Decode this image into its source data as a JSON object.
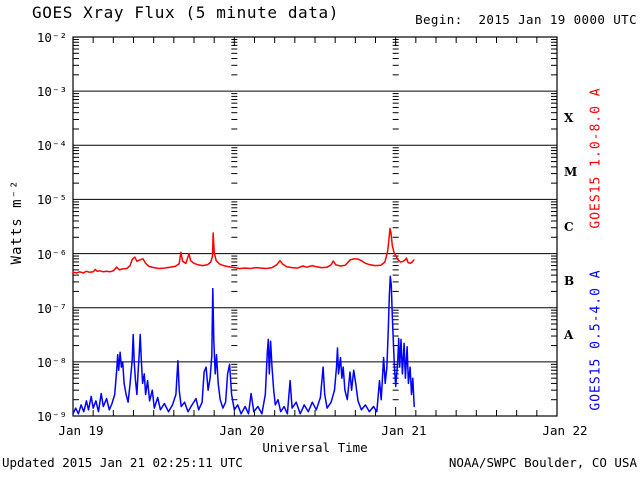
{
  "header": {
    "title": "GOES Xray Flux (5 minute data)",
    "begin_label": "Begin:  2015 Jan 19 0000 UTC"
  },
  "footer": {
    "updated": "Updated 2015 Jan 21 02:25:11 UTC",
    "source": "NOAA/SWPC Boulder, CO USA"
  },
  "axes": {
    "y_label": "Watts m⁻²",
    "x_label": "Universal Time",
    "y_ticks": [
      "10⁻²",
      "10⁻³",
      "10⁻⁴",
      "10⁻⁵",
      "10⁻⁶",
      "10⁻⁷",
      "10⁻⁸",
      "10⁻⁹"
    ],
    "x_ticks": [
      "Jan 19",
      "Jan 20",
      "Jan 21",
      "Jan 22"
    ]
  },
  "flare_classes": [
    "X",
    "M",
    "C",
    "B",
    "A"
  ],
  "series_labels": {
    "long": "GOES15 1.0-8.0 A",
    "short": "GOES15 0.5-4.0 A"
  },
  "colors": {
    "long": "#ff0000",
    "short": "#0000ff",
    "axis": "#000000",
    "background": "#ffffff"
  },
  "chart_data": {
    "type": "line",
    "title": "GOES Xray Flux (5 minute data)",
    "xlabel": "Universal Time",
    "ylabel": "Watts m⁻²",
    "x_unit_hours_since": "2015 Jan 19 0000 UTC",
    "x_range_hours": [
      0,
      72
    ],
    "x_day_labels": [
      "Jan 19",
      "Jan 20",
      "Jan 21",
      "Jan 22"
    ],
    "y_scale": "log",
    "y_range": [
      1e-09,
      0.01
    ],
    "grid": "horizontal decades + dashed day columns",
    "legend_position": "right-rotated",
    "series": [
      {
        "name": "GOES15 1.0-8.0 A",
        "color": "#ff0000",
        "points": [
          [
            0,
            4.5e-07
          ],
          [
            0.5,
            4.4e-07
          ],
          [
            1,
            4.6e-07
          ],
          [
            1.5,
            4.4e-07
          ],
          [
            2,
            4.7e-07
          ],
          [
            2.5,
            4.5e-07
          ],
          [
            3,
            4.6e-07
          ],
          [
            3.3,
            5.1e-07
          ],
          [
            3.6,
            4.7e-07
          ],
          [
            4,
            4.8e-07
          ],
          [
            4.5,
            4.6e-07
          ],
          [
            5,
            4.7e-07
          ],
          [
            5.5,
            4.6e-07
          ],
          [
            6,
            4.8e-07
          ],
          [
            6.5,
            5.6e-07
          ],
          [
            6.9,
            5e-07
          ],
          [
            7.4,
            5.2e-07
          ],
          [
            8,
            5.3e-07
          ],
          [
            8.5,
            6e-07
          ],
          [
            8.8,
            7.8e-07
          ],
          [
            9.2,
            8.6e-07
          ],
          [
            9.5,
            7.2e-07
          ],
          [
            9.9,
            7.6e-07
          ],
          [
            10.4,
            8e-07
          ],
          [
            10.8,
            6.6e-07
          ],
          [
            11.3,
            5.8e-07
          ],
          [
            12,
            5.5e-07
          ],
          [
            12.8,
            5.3e-07
          ],
          [
            13.6,
            5.4e-07
          ],
          [
            14.4,
            5.6e-07
          ],
          [
            15.2,
            5.8e-07
          ],
          [
            15.8,
            6.5e-07
          ],
          [
            16.05,
            1.06e-06
          ],
          [
            16.3,
            7.2e-07
          ],
          [
            16.8,
            6.6e-07
          ],
          [
            17.25,
            1e-06
          ],
          [
            17.5,
            7.4e-07
          ],
          [
            18,
            6.6e-07
          ],
          [
            18.6,
            6.2e-07
          ],
          [
            19.3,
            6e-07
          ],
          [
            20,
            6.2e-07
          ],
          [
            20.5,
            7e-07
          ],
          [
            20.75,
            9e-07
          ],
          [
            20.85,
            2.4e-06
          ],
          [
            21,
            1.05e-06
          ],
          [
            21.3,
            7.4e-07
          ],
          [
            21.8,
            6.4e-07
          ],
          [
            22.4,
            6e-07
          ],
          [
            23.2,
            5.7e-07
          ],
          [
            24,
            5.5e-07
          ],
          [
            24.8,
            5.3e-07
          ],
          [
            25.6,
            5.4e-07
          ],
          [
            26.4,
            5.3e-07
          ],
          [
            27.2,
            5.5e-07
          ],
          [
            28,
            5.4e-07
          ],
          [
            28.8,
            5.3e-07
          ],
          [
            29.6,
            5.5e-07
          ],
          [
            30.3,
            6.2e-07
          ],
          [
            30.8,
            7.4e-07
          ],
          [
            31.2,
            6.4e-07
          ],
          [
            31.8,
            5.7e-07
          ],
          [
            32.6,
            5.5e-07
          ],
          [
            33.4,
            5.4e-07
          ],
          [
            34.2,
            5.9e-07
          ],
          [
            34.8,
            5.6e-07
          ],
          [
            35.6,
            6e-07
          ],
          [
            36.2,
            5.7e-07
          ],
          [
            37,
            5.5e-07
          ],
          [
            37.8,
            5.6e-07
          ],
          [
            38.4,
            6.2e-07
          ],
          [
            38.7,
            7.3e-07
          ],
          [
            39.1,
            6.2e-07
          ],
          [
            39.8,
            5.9e-07
          ],
          [
            40.5,
            6.1e-07
          ],
          [
            41.2,
            7.6e-07
          ],
          [
            41.8,
            8e-07
          ],
          [
            42.4,
            7.9e-07
          ],
          [
            42.9,
            7.4e-07
          ],
          [
            43.5,
            6.6e-07
          ],
          [
            44.2,
            6.2e-07
          ],
          [
            45,
            6e-07
          ],
          [
            45.8,
            6.1e-07
          ],
          [
            46.4,
            7e-07
          ],
          [
            46.8,
            1.1e-06
          ],
          [
            47,
            1.8e-06
          ],
          [
            47.15,
            2.9e-06
          ],
          [
            47.3,
            2.4e-06
          ],
          [
            47.5,
            1.4e-06
          ],
          [
            47.75,
            1.05e-06
          ],
          [
            48,
            9.2e-07
          ],
          [
            48.3,
            7.8e-07
          ],
          [
            48.7,
            7e-07
          ],
          [
            49.1,
            7.2e-07
          ],
          [
            49.4,
            7.6e-07
          ],
          [
            49.6,
            8.3e-07
          ],
          [
            49.85,
            6.8e-07
          ],
          [
            50.2,
            6.6e-07
          ],
          [
            50.45,
            7e-07
          ],
          [
            50.7,
            7.6e-07
          ]
        ]
      },
      {
        "name": "GOES15 0.5-4.0 A",
        "color": "#0000ff",
        "points": [
          [
            0,
            1.1e-09
          ],
          [
            0.4,
            1.4e-09
          ],
          [
            0.8,
            1.1e-09
          ],
          [
            1.2,
            1.6e-09
          ],
          [
            1.6,
            1.2e-09
          ],
          [
            2.0,
            1.9e-09
          ],
          [
            2.3,
            1.3e-09
          ],
          [
            2.7,
            2.3e-09
          ],
          [
            3.0,
            1.4e-09
          ],
          [
            3.4,
            1.9e-09
          ],
          [
            3.8,
            1.2e-09
          ],
          [
            4.2,
            2.6e-09
          ],
          [
            4.5,
            1.5e-09
          ],
          [
            5.0,
            2.1e-09
          ],
          [
            5.4,
            1.3e-09
          ],
          [
            5.8,
            1.7e-09
          ],
          [
            6.2,
            2.5e-09
          ],
          [
            6.5,
            7e-09
          ],
          [
            6.65,
            1.35e-08
          ],
          [
            6.8,
            7e-09
          ],
          [
            7.0,
            1.5e-08
          ],
          [
            7.2,
            8e-09
          ],
          [
            7.4,
            1e-08
          ],
          [
            7.6,
            4e-09
          ],
          [
            7.9,
            2.5e-09
          ],
          [
            8.2,
            1.8e-09
          ],
          [
            8.5,
            4e-09
          ],
          [
            8.8,
            1.1e-08
          ],
          [
            8.95,
            3.2e-08
          ],
          [
            9.1,
            1e-08
          ],
          [
            9.3,
            4.5e-09
          ],
          [
            9.5,
            2.5e-09
          ],
          [
            9.7,
            7e-09
          ],
          [
            9.85,
            1.4e-08
          ],
          [
            10.0,
            3.2e-08
          ],
          [
            10.15,
            1.2e-08
          ],
          [
            10.35,
            4e-09
          ],
          [
            10.6,
            6e-09
          ],
          [
            10.8,
            2.5e-09
          ],
          [
            11.1,
            4.5e-09
          ],
          [
            11.4,
            1.9e-09
          ],
          [
            11.8,
            3e-09
          ],
          [
            12.1,
            1.4e-09
          ],
          [
            12.6,
            2.2e-09
          ],
          [
            13.0,
            1.3e-09
          ],
          [
            13.6,
            1.7e-09
          ],
          [
            14.2,
            1.2e-09
          ],
          [
            14.8,
            1.6e-09
          ],
          [
            15.3,
            2.5e-09
          ],
          [
            15.6,
            1.05e-08
          ],
          [
            15.8,
            3e-09
          ],
          [
            16.1,
            1.5e-09
          ],
          [
            16.6,
            1.8e-09
          ],
          [
            17.1,
            1.2e-09
          ],
          [
            17.7,
            1.6e-09
          ],
          [
            18.3,
            2.1e-09
          ],
          [
            18.7,
            1.3e-09
          ],
          [
            19.2,
            1.8e-09
          ],
          [
            19.5,
            6.5e-09
          ],
          [
            19.8,
            8e-09
          ],
          [
            20.1,
            3e-09
          ],
          [
            20.4,
            5e-09
          ],
          [
            20.65,
            1.3e-08
          ],
          [
            20.8,
            2.25e-07
          ],
          [
            20.95,
            2.5e-08
          ],
          [
            21.15,
            6e-09
          ],
          [
            21.35,
            1.35e-08
          ],
          [
            21.6,
            4e-09
          ],
          [
            21.9,
            2e-09
          ],
          [
            22.3,
            1.4e-09
          ],
          [
            22.7,
            1.8e-09
          ],
          [
            23.0,
            6e-09
          ],
          [
            23.3,
            9e-09
          ],
          [
            23.6,
            2.5e-09
          ],
          [
            24.0,
            1.3e-09
          ],
          [
            24.5,
            1.6e-09
          ],
          [
            25.0,
            1.1e-09
          ],
          [
            25.6,
            1.5e-09
          ],
          [
            26.1,
            1.1e-09
          ],
          [
            26.5,
            2.6e-09
          ],
          [
            26.9,
            1.2e-09
          ],
          [
            27.5,
            1.5e-09
          ],
          [
            28.1,
            1.1e-09
          ],
          [
            28.6,
            2.5e-09
          ],
          [
            28.9,
            1.5e-08
          ],
          [
            29.05,
            2.6e-08
          ],
          [
            29.2,
            6e-09
          ],
          [
            29.4,
            2.4e-08
          ],
          [
            29.6,
            8e-09
          ],
          [
            29.85,
            3e-09
          ],
          [
            30.1,
            1.6e-09
          ],
          [
            30.5,
            2e-09
          ],
          [
            30.9,
            1.2e-09
          ],
          [
            31.4,
            1.5e-09
          ],
          [
            31.9,
            1.1e-09
          ],
          [
            32.3,
            4.5e-09
          ],
          [
            32.6,
            1.4e-09
          ],
          [
            33.2,
            1.8e-09
          ],
          [
            33.8,
            1.1e-09
          ],
          [
            34.4,
            1.6e-09
          ],
          [
            35.0,
            1.2e-09
          ],
          [
            35.6,
            1.8e-09
          ],
          [
            36.2,
            1.3e-09
          ],
          [
            36.8,
            2.2e-09
          ],
          [
            37.2,
            8e-09
          ],
          [
            37.45,
            2.5e-09
          ],
          [
            37.8,
            1.4e-09
          ],
          [
            38.4,
            1.8e-09
          ],
          [
            38.9,
            3e-09
          ],
          [
            39.2,
            8e-09
          ],
          [
            39.35,
            1.8e-08
          ],
          [
            39.5,
            6e-09
          ],
          [
            39.8,
            1.2e-08
          ],
          [
            40.0,
            5e-09
          ],
          [
            40.2,
            8e-09
          ],
          [
            40.45,
            3e-09
          ],
          [
            40.8,
            2e-09
          ],
          [
            41.2,
            6.5e-09
          ],
          [
            41.45,
            3e-09
          ],
          [
            41.75,
            7e-09
          ],
          [
            42.05,
            4e-09
          ],
          [
            42.4,
            1.9e-09
          ],
          [
            42.9,
            1.3e-09
          ],
          [
            43.5,
            1.6e-09
          ],
          [
            44.1,
            1.2e-09
          ],
          [
            44.7,
            1.5e-09
          ],
          [
            45.2,
            1.2e-09
          ],
          [
            45.6,
            4.5e-09
          ],
          [
            45.85,
            2e-09
          ],
          [
            46.2,
            1.2e-08
          ],
          [
            46.45,
            4e-09
          ],
          [
            46.7,
            8e-09
          ],
          [
            46.9,
            4e-08
          ],
          [
            47.05,
            1.6e-07
          ],
          [
            47.2,
            3.8e-07
          ],
          [
            47.35,
            2.6e-07
          ],
          [
            47.5,
            7e-08
          ],
          [
            47.65,
            2.5e-08
          ],
          [
            47.8,
            9e-09
          ],
          [
            48.0,
            3.5e-09
          ],
          [
            48.3,
            1e-08
          ],
          [
            48.45,
            2.7e-08
          ],
          [
            48.6,
            8e-09
          ],
          [
            48.8,
            2.6e-08
          ],
          [
            49.0,
            6e-09
          ],
          [
            49.25,
            2.2e-08
          ],
          [
            49.45,
            5e-09
          ],
          [
            49.7,
            1.9e-08
          ],
          [
            49.9,
            4e-09
          ],
          [
            50.15,
            8e-09
          ],
          [
            50.35,
            2.5e-09
          ],
          [
            50.55,
            5e-09
          ],
          [
            50.75,
            1.5e-09
          ]
        ]
      }
    ]
  },
  "layout_values": {
    "y_tick_tops": [
      30,
      84,
      138,
      192,
      247,
      301,
      355,
      409
    ],
    "x_tick_centers": [
      81,
      242,
      404,
      565
    ],
    "flare_class_tops": [
      111,
      165,
      220,
      274,
      328
    ]
  }
}
